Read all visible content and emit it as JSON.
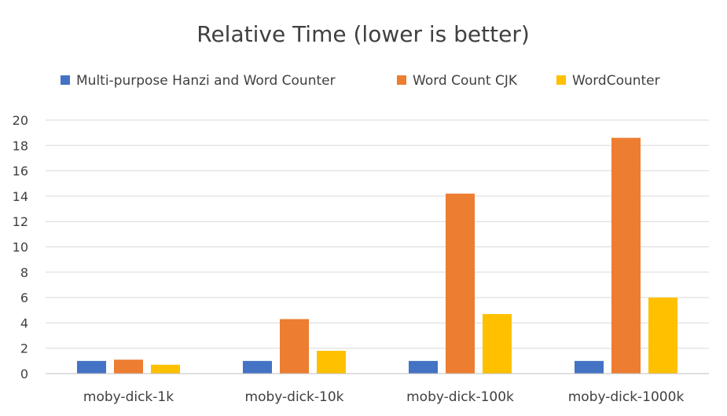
{
  "chart_data": {
    "type": "bar",
    "title": "Relative Time (lower is better)",
    "categories": [
      "moby-dick-1k",
      "moby-dick-10k",
      "moby-dick-100k",
      "moby-dick-1000k"
    ],
    "series": [
      {
        "name": "Multi-purpose Hanzi and Word Counter",
        "color": "#4472c4",
        "values": [
          1,
          1,
          1,
          1
        ]
      },
      {
        "name": "Word Count CJK",
        "color": "#ed7d31",
        "values": [
          1.1,
          4.3,
          14.2,
          18.6
        ]
      },
      {
        "name": "WordCounter",
        "color": "#ffc000",
        "values": [
          0.7,
          1.8,
          4.7,
          6.0
        ]
      }
    ],
    "ylim": [
      0,
      20
    ],
    "yticks": [
      "0",
      "2",
      "4",
      "6",
      "8",
      "10",
      "12",
      "14",
      "16",
      "18",
      "20"
    ],
    "legend_position": "top",
    "grid": true
  }
}
